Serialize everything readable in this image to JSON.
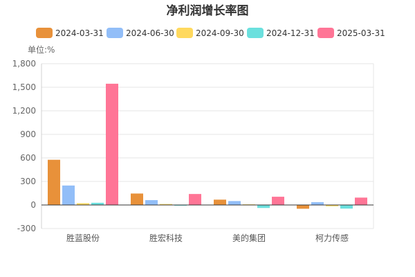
{
  "chart_data": {
    "type": "bar",
    "title": "净利润增长率图",
    "unit_label": "单位:%",
    "categories": [
      "胜蓝股份",
      "胜宏科技",
      "美的集团",
      "柯力传感"
    ],
    "series": [
      {
        "name": "2024-03-31",
        "color": "#E8913A",
        "values": [
          576,
          146,
          68,
          -48
        ]
      },
      {
        "name": "2024-06-30",
        "color": "#92BEF8",
        "values": [
          248,
          62,
          50,
          36
        ]
      },
      {
        "name": "2024-09-30",
        "color": "#FFD95E",
        "values": [
          22,
          12,
          8,
          -16
        ]
      },
      {
        "name": "2024-12-31",
        "color": "#6BE0DE",
        "values": [
          28,
          -4,
          -38,
          -46
        ]
      },
      {
        "name": "2025-03-31",
        "color": "#FF7596",
        "values": [
          1545,
          140,
          105,
          94
        ]
      }
    ],
    "y_ticks": [
      "-300",
      "0",
      "300",
      "600",
      "900",
      "1,200",
      "1,500",
      "1,800"
    ],
    "ylim": [
      -300,
      1800
    ],
    "legend_position": "top",
    "grid": true
  }
}
